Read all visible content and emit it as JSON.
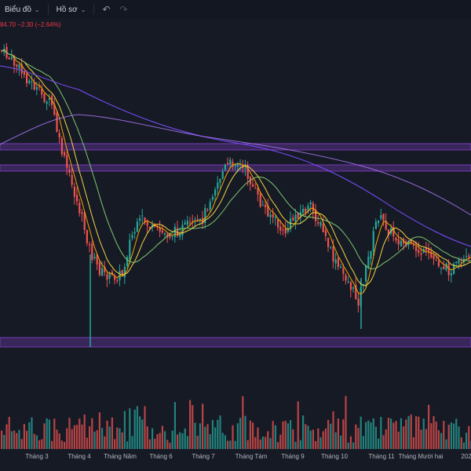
{
  "toolbar": {
    "chart_label": "Biểu đồ",
    "profile_label": "Hồ sơ",
    "chevron_icon": "chevron-down-icon",
    "undo_icon": "undo-icon",
    "redo_icon": "redo-icon"
  },
  "legend": {
    "price_change": "84.70 −2.30 (−2.64%)"
  },
  "colors": {
    "background": "#161a25",
    "up": "#26a69a",
    "down": "#ef5350",
    "ma_fast": "#f7a600",
    "ma_mid": "#f5d742",
    "ma_slow": "#7ec76e",
    "ma_long": "#7b4dff",
    "zone": "#7b3fbf"
  },
  "x_axis": {
    "labels": [
      "Tháng 3",
      "Tháng 4",
      "Tháng Năm",
      "Tháng 6",
      "Tháng 7",
      "Tháng Tám",
      "Tháng 9",
      "Tháng 10",
      "Tháng 11",
      "Tháng Mười hai",
      "202"
    ]
  }
}
